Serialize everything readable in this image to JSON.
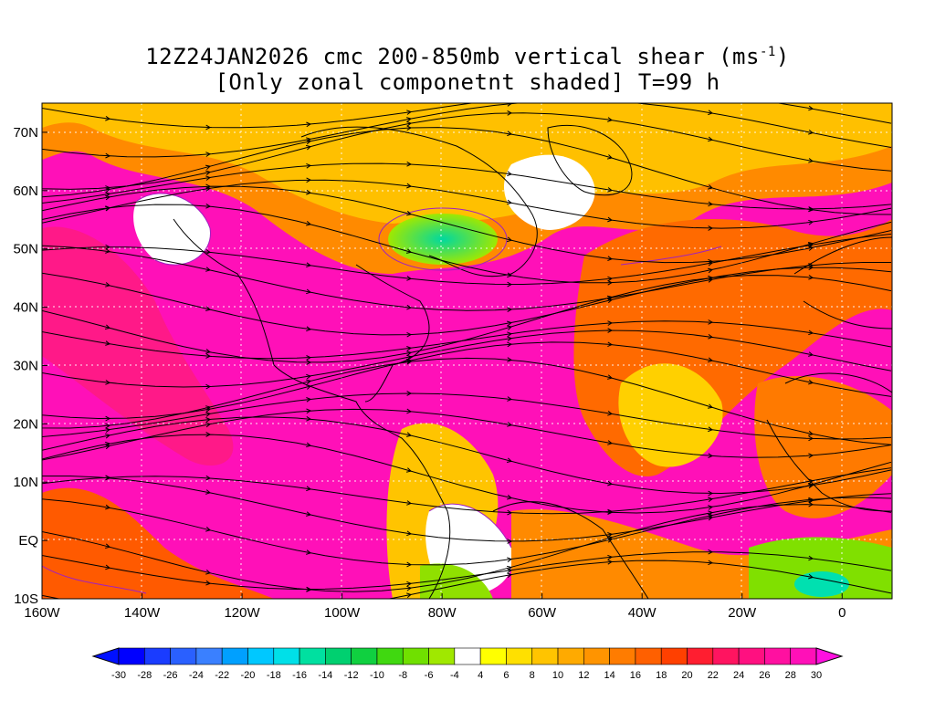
{
  "title": {
    "line1": "12Z24JAN2026 cmc 200-850mb vertical shear (ms",
    "line1_sup": "-1",
    "line1_end": ")",
    "line2": "[Only zonal componetnt shaded] T=99 h"
  },
  "map": {
    "lon_range": [
      -160,
      10
    ],
    "lat_range": [
      -10,
      75
    ],
    "x_ticks": [
      "160W",
      "140W",
      "120W",
      "100W",
      "80W",
      "60W",
      "40W",
      "20W",
      "0"
    ],
    "x_tick_values": [
      -160,
      -140,
      -120,
      -100,
      -80,
      -60,
      -40,
      -20,
      0
    ],
    "y_ticks": [
      "70N",
      "60N",
      "50N",
      "40N",
      "30N",
      "20N",
      "10N",
      "EQ",
      "10S"
    ],
    "y_tick_values": [
      70,
      60,
      50,
      40,
      30,
      20,
      10,
      0,
      -10
    ],
    "field": "zonal vertical shear (shaded), shear vector streamlines",
    "grid": "dotted white"
  },
  "colorbar": {
    "labels": [
      "-30",
      "-28",
      "-26",
      "-24",
      "-22",
      "-20",
      "-18",
      "-16",
      "-14",
      "-12",
      "-10",
      "-8",
      "-6",
      "-4",
      "4",
      "6",
      "8",
      "10",
      "12",
      "14",
      "16",
      "18",
      "20",
      "22",
      "24",
      "26",
      "28",
      "30"
    ],
    "colors": [
      "#0000ff",
      "#1a3cff",
      "#2a60ff",
      "#3a80ff",
      "#00a0ff",
      "#00c8ff",
      "#00e0e8",
      "#00e0a0",
      "#00d070",
      "#10d040",
      "#40d810",
      "#70e000",
      "#a0e800",
      "#ffffff",
      "#ffff00",
      "#ffe000",
      "#ffc400",
      "#ffaa00",
      "#ff9400",
      "#ff7c00",
      "#ff6000",
      "#ff4000",
      "#ff1e30",
      "#ff1460",
      "#ff1080",
      "#ff10a0",
      "#ff10b8"
    ],
    "end_low": "#0010ff",
    "end_high": "#ff10e0"
  }
}
